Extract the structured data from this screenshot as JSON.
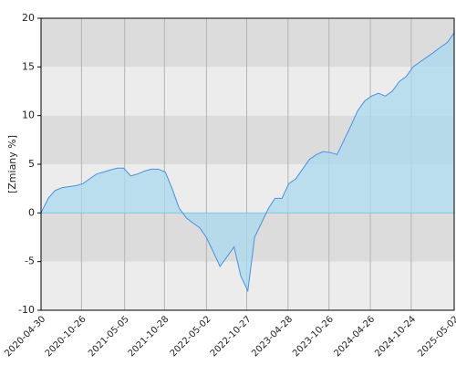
{
  "chart_data": {
    "type": "area",
    "y_label": "[Zmiany %]",
    "x": [
      "2020-04-30",
      "2020-06-01",
      "2020-07-01",
      "2020-08-01",
      "2020-09-01",
      "2020-10-01",
      "2020-11-01",
      "2020-12-01",
      "2021-01-01",
      "2021-02-01",
      "2021-03-01",
      "2021-04-01",
      "2021-05-01",
      "2021-06-01",
      "2021-07-01",
      "2021-08-01",
      "2021-09-01",
      "2021-10-01",
      "2021-11-01",
      "2021-12-01",
      "2022-01-01",
      "2022-02-01",
      "2022-03-01",
      "2022-04-01",
      "2022-05-01",
      "2022-06-01",
      "2022-07-01",
      "2022-08-01",
      "2022-09-01",
      "2022-10-01",
      "2022-11-01",
      "2022-12-01",
      "2023-01-01",
      "2023-02-01",
      "2023-03-01",
      "2023-04-01",
      "2023-05-01",
      "2023-06-01",
      "2023-07-01",
      "2023-08-01",
      "2023-09-01",
      "2023-10-01",
      "2023-11-01",
      "2023-12-01",
      "2024-01-01",
      "2024-02-01",
      "2024-03-01",
      "2024-04-01",
      "2024-05-01",
      "2024-06-01",
      "2024-07-01",
      "2024-08-01",
      "2024-09-01",
      "2024-10-01",
      "2024-11-01",
      "2024-12-01",
      "2025-01-01",
      "2025-02-01",
      "2025-03-01",
      "2025-04-01",
      "2025-05-02"
    ],
    "values": [
      0,
      1.5,
      2.3,
      2.6,
      2.7,
      2.8,
      3.0,
      3.5,
      4.0,
      4.2,
      4.4,
      4.6,
      4.6,
      3.8,
      4.0,
      4.3,
      4.5,
      4.5,
      4.2,
      2.5,
      0.5,
      -0.5,
      -1.0,
      -1.5,
      -2.5,
      -4.0,
      -5.5,
      -4.5,
      -3.5,
      -6.5,
      -8.0,
      -2.5,
      -1.0,
      0.5,
      1.5,
      1.5,
      3.0,
      3.5,
      4.5,
      5.5,
      6.0,
      6.3,
      6.2,
      6.0,
      7.5,
      9.0,
      10.5,
      11.5,
      12.0,
      12.3,
      12.0,
      12.5,
      13.5,
      14.0,
      15.0,
      15.5,
      16.0,
      16.5,
      17.0,
      17.5,
      18.5
    ],
    "color": "#4a90e2",
    "fill_color": "#a9d9ee",
    "xlim": [
      "2020-04-30",
      "2025-05-02"
    ],
    "xticks": [
      "2020-04-30",
      "2020-10-26",
      "2021-05-05",
      "2021-10-28",
      "2022-05-02",
      "2022-10-27",
      "2023-04-28",
      "2023-10-26",
      "2024-04-26",
      "2024-10-24",
      "2025-05-02"
    ],
    "ylim": [
      -10,
      20
    ],
    "yticks": [
      -10,
      -5,
      0,
      5,
      10,
      15,
      20
    ],
    "grid": true
  }
}
